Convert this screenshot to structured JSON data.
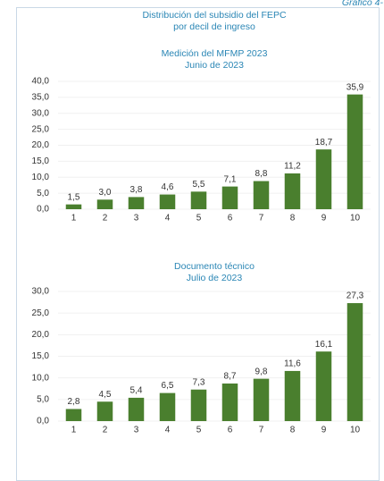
{
  "label": "Gráfico 4-",
  "title": "Distribución del subsidio del FEPC",
  "subtitle": "por decil de ingreso",
  "chart_data": [
    {
      "type": "bar",
      "title": "Medición del MFMP 2023",
      "subtitle": "Junio de 2023",
      "categories": [
        "1",
        "2",
        "3",
        "4",
        "5",
        "6",
        "7",
        "8",
        "9",
        "10"
      ],
      "values": [
        1.5,
        3.0,
        3.8,
        4.6,
        5.5,
        7.1,
        8.8,
        11.2,
        18.7,
        35.9
      ],
      "value_labels": [
        "1,5",
        "3,0",
        "3,8",
        "4,6",
        "5,5",
        "7,1",
        "8,8",
        "11,2",
        "18,7",
        "35,9"
      ],
      "color": "#4a7f2e",
      "ylim": [
        0,
        40
      ],
      "yticks": [
        {
          "value": 0,
          "label": "0,0"
        },
        {
          "value": 5,
          "label": "5,0"
        },
        {
          "value": 10,
          "label": "10,0"
        },
        {
          "value": 15,
          "label": "15,0"
        },
        {
          "value": 20,
          "label": "20,0"
        },
        {
          "value": 25,
          "label": "25,0"
        },
        {
          "value": 30,
          "label": "30,0"
        },
        {
          "value": 35,
          "label": "35,0"
        },
        {
          "value": 40,
          "label": "40,0"
        }
      ],
      "grid": true
    },
    {
      "type": "bar",
      "title": "Documento técnico",
      "subtitle": "Julio de 2023",
      "categories": [
        "1",
        "2",
        "3",
        "4",
        "5",
        "6",
        "7",
        "8",
        "9",
        "10"
      ],
      "values": [
        2.8,
        4.5,
        5.4,
        6.5,
        7.3,
        8.7,
        9.8,
        11.6,
        16.1,
        27.3
      ],
      "value_labels": [
        "2,8",
        "4,5",
        "5,4",
        "6,5",
        "7,3",
        "8,7",
        "9,8",
        "11,6",
        "16,1",
        "27,3"
      ],
      "color": "#4a7f2e",
      "ylim": [
        0,
        30
      ],
      "yticks": [
        {
          "value": 0,
          "label": "0,0"
        },
        {
          "value": 5,
          "label": "5,0"
        },
        {
          "value": 10,
          "label": "10,0"
        },
        {
          "value": 15,
          "label": "15,0"
        },
        {
          "value": 20,
          "label": "20,0"
        },
        {
          "value": 25,
          "label": "25,0"
        },
        {
          "value": 30,
          "label": "30,0"
        }
      ],
      "grid": true
    }
  ]
}
